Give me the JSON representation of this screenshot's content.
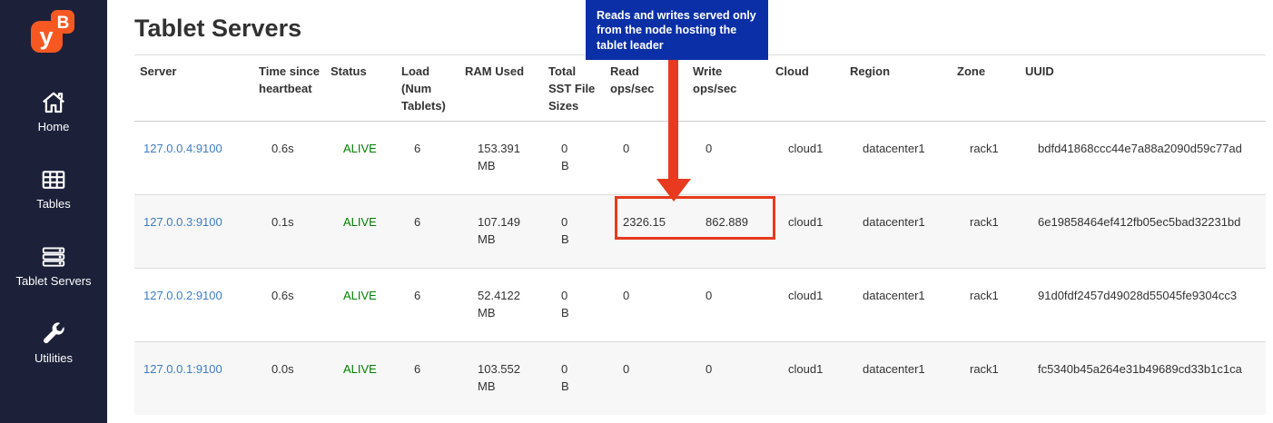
{
  "colors": {
    "sidebar_bg": "#1C2139",
    "logo_orange": "#F75821",
    "callout_blue": "#0A2FA6",
    "annotation_red": "#E73A1E",
    "link_blue": "#3E7CC1",
    "status_green": "#008000",
    "row_stripe": "#F7F7F7"
  },
  "sidebar": {
    "logo_y": "y",
    "logo_b": "B",
    "items": [
      {
        "icon": "home-icon",
        "label": "Home"
      },
      {
        "icon": "tables-icon",
        "label": "Tables"
      },
      {
        "icon": "tablet-servers-icon",
        "label": "Tablet Servers"
      },
      {
        "icon": "utilities-icon",
        "label": "Utilities"
      }
    ]
  },
  "page": {
    "title": "Tablet Servers"
  },
  "annotation": {
    "callout": "Reads and writes served only from the node hosting the tablet leader"
  },
  "table": {
    "columns": [
      "Server",
      "Time since heartbeat",
      "Status",
      "Load (Num Tablets)",
      "RAM Used",
      "Total SST File Sizes",
      "Read ops/sec",
      "Write ops/sec",
      "Cloud",
      "Region",
      "Zone",
      "UUID"
    ],
    "row_keys": [
      "server",
      "time",
      "status",
      "load",
      "ram",
      "sst",
      "read",
      "write",
      "cloud",
      "region",
      "zone",
      "uuid"
    ],
    "rows": [
      {
        "server": "127.0.0.4:9100",
        "time": "0.6s",
        "status": "ALIVE",
        "load": "6",
        "ram": [
          "153.391",
          "MB"
        ],
        "sst": [
          "0",
          "B"
        ],
        "read": "0",
        "write": "0",
        "cloud": "cloud1",
        "region": "datacenter1",
        "zone": "rack1",
        "uuid": "bdfd41868ccc44e7a88a2090d59c77ad"
      },
      {
        "server": "127.0.0.3:9100",
        "time": "0.1s",
        "status": "ALIVE",
        "load": "6",
        "ram": [
          "107.149",
          "MB"
        ],
        "sst": [
          "0",
          "B"
        ],
        "read": "2326.15",
        "write": "862.889",
        "cloud": "cloud1",
        "region": "datacenter1",
        "zone": "rack1",
        "uuid": "6e19858464ef412fb05ec5bad32231bd"
      },
      {
        "server": "127.0.0.2:9100",
        "time": "0.6s",
        "status": "ALIVE",
        "load": "6",
        "ram": [
          "52.4122",
          "MB"
        ],
        "sst": [
          "0",
          "B"
        ],
        "read": "0",
        "write": "0",
        "cloud": "cloud1",
        "region": "datacenter1",
        "zone": "rack1",
        "uuid": "91d0fdf2457d49028d55045fe9304cc3"
      },
      {
        "server": "127.0.0.1:9100",
        "time": "0.0s",
        "status": "ALIVE",
        "load": "6",
        "ram": [
          "103.552",
          "MB"
        ],
        "sst": [
          "0",
          "B"
        ],
        "read": "0",
        "write": "0",
        "cloud": "cloud1",
        "region": "datacenter1",
        "zone": "rack1",
        "uuid": "fc5340b45a264e31b49689cd33b1c1ca"
      }
    ]
  }
}
